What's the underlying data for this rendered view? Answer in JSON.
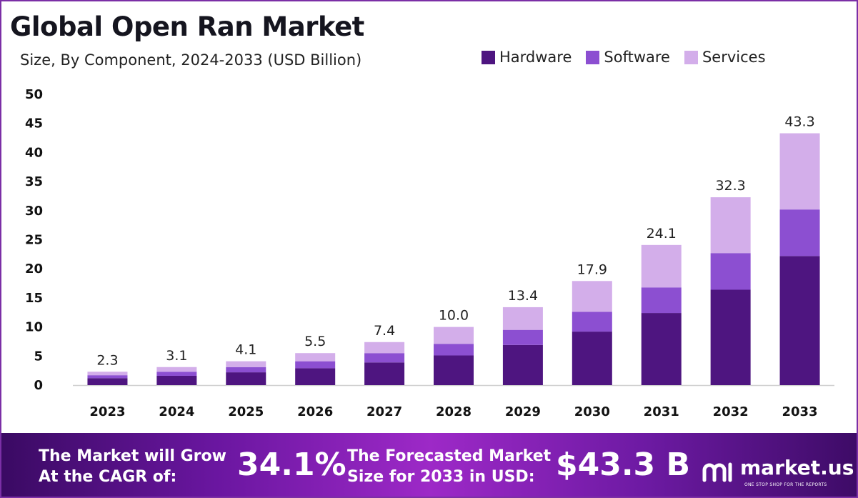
{
  "title": "Global Open Ran Market",
  "subtitle": "Size, By Component, 2024-2033 (USD Billion)",
  "colors": {
    "hardware": "#4e1580",
    "software": "#8c4fd1",
    "services": "#d3aeea",
    "frame": "#7b2fa6"
  },
  "chart_data": {
    "type": "bar",
    "stacked": true,
    "categories": [
      "2023",
      "2024",
      "2025",
      "2026",
      "2027",
      "2028",
      "2029",
      "2030",
      "2031",
      "2032",
      "2033"
    ],
    "series": [
      {
        "name": "Hardware",
        "values": [
          1.2,
          1.6,
          2.2,
          2.9,
          3.9,
          5.1,
          6.9,
          9.2,
          12.4,
          16.4,
          22.2
        ]
      },
      {
        "name": "Software",
        "values": [
          0.5,
          0.7,
          0.9,
          1.2,
          1.6,
          2.0,
          2.6,
          3.4,
          4.4,
          6.3,
          8.0
        ]
      },
      {
        "name": "Services",
        "values": [
          0.6,
          0.8,
          1.0,
          1.4,
          1.9,
          2.9,
          3.9,
          5.3,
          7.3,
          9.6,
          13.1
        ]
      }
    ],
    "totals": [
      "2.3",
      "3.1",
      "4.1",
      "5.5",
      "7.4",
      "10.0",
      "13.4",
      "17.9",
      "24.1",
      "32.3",
      "43.3"
    ],
    "yticks": [
      "0",
      "5",
      "10",
      "15",
      "20",
      "25",
      "30",
      "35",
      "40",
      "45",
      "50"
    ],
    "ylim": [
      0,
      50
    ],
    "legend_position": "top-right",
    "grid": false
  },
  "footer": {
    "cagr_label_line1": "The Market will Grow",
    "cagr_label_line2": "At the CAGR of:",
    "cagr_value": "34.1%",
    "forecast_label_line1": "The Forecasted Market",
    "forecast_label_line2": "Size for 2033 in USD:",
    "forecast_value": "$43.3 B",
    "brand_name": "market.us",
    "brand_tagline": "ONE STOP SHOP FOR THE REPORTS"
  }
}
